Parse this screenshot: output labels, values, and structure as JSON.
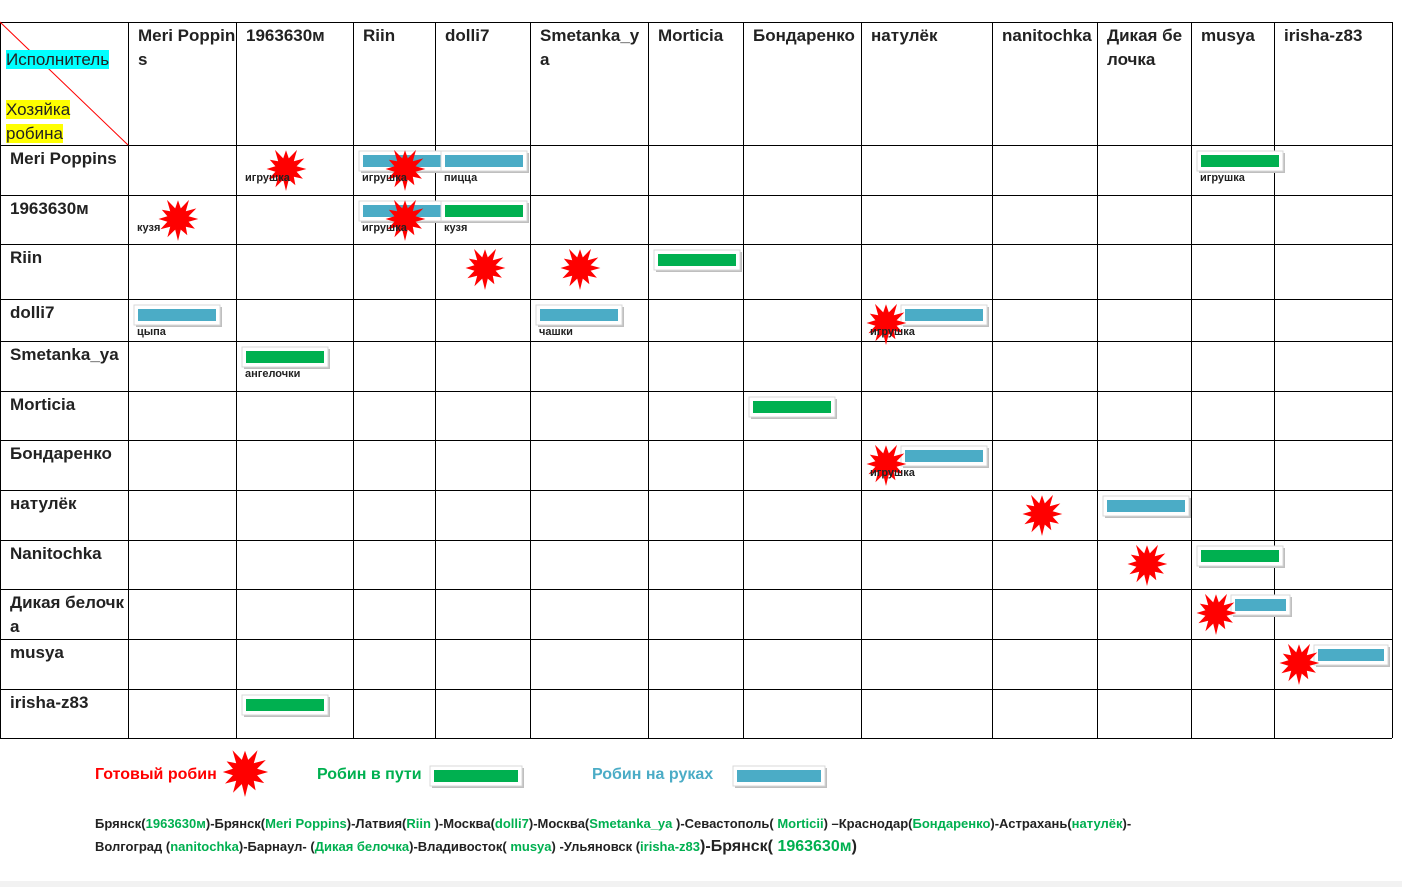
{
  "corner": {
    "columns_label": "Исполнитель",
    "rows_label": "Хозяйка робина"
  },
  "columns": [
    "Meri Poppins",
    "1963630м",
    "Riin",
    "dolli7",
    "Smetanka_ya",
    "Morticia",
    "Бондаренко",
    "натулёк",
    "nanitochka",
    "Дикая белочка",
    "musya",
    "irisha-z83"
  ],
  "rows": [
    {
      "name": "Meri Poppins",
      "cells": [
        null,
        {
          "items": [
            0
          ],
          "label": "игрушка"
        },
        {
          "items": [
            2,
            0
          ],
          "label": "игрушка"
        },
        {
          "items": [
            2
          ],
          "label": "пицца"
        },
        null,
        null,
        null,
        null,
        null,
        null,
        {
          "items": [
            1
          ],
          "label": "игрушка"
        },
        null
      ]
    },
    {
      "name": "1963630м",
      "cells": [
        {
          "items": [
            0
          ],
          "label": "кузя"
        },
        null,
        {
          "items": [
            2,
            0
          ],
          "label": "игрушка"
        },
        {
          "items": [
            1
          ],
          "label": "кузя"
        },
        null,
        null,
        null,
        null,
        null,
        null,
        null,
        null
      ]
    },
    {
      "name": "Riin",
      "cells": [
        null,
        null,
        null,
        {
          "items": [
            0
          ]
        },
        {
          "items": [
            0
          ]
        },
        {
          "items": [
            1
          ]
        },
        null,
        null,
        null,
        null,
        null,
        null
      ]
    },
    {
      "name": "dolli7",
      "cells": [
        {
          "items": [
            2
          ],
          "label": "цыпа"
        },
        null,
        null,
        null,
        {
          "items": [
            2
          ],
          "label": "чашки"
        },
        null,
        null,
        {
          "items": [
            0,
            2
          ],
          "label": "игрушка"
        },
        null,
        null,
        null,
        null
      ]
    },
    {
      "name": "Smetanka_ya",
      "cells": [
        null,
        {
          "items": [
            1
          ],
          "label": "ангелочки"
        },
        null,
        null,
        null,
        null,
        null,
        null,
        null,
        null,
        null,
        null
      ]
    },
    {
      "name": "Morticia",
      "cells": [
        null,
        null,
        null,
        null,
        null,
        null,
        {
          "items": [
            1
          ]
        },
        null,
        null,
        null,
        null,
        null
      ]
    },
    {
      "name": "Бондаренко",
      "cells": [
        null,
        null,
        null,
        null,
        null,
        null,
        null,
        {
          "items": [
            0,
            2
          ],
          "label": "игрушка"
        },
        null,
        null,
        null,
        null
      ]
    },
    {
      "name": "натулёк",
      "cells": [
        null,
        null,
        null,
        null,
        null,
        null,
        null,
        null,
        {
          "items": [
            0
          ]
        },
        {
          "items": [
            2
          ]
        },
        null,
        null
      ]
    },
    {
      "name": "Nanitochka",
      "cells": [
        null,
        null,
        null,
        null,
        null,
        null,
        null,
        null,
        null,
        {
          "items": [
            0
          ]
        },
        {
          "items": [
            1
          ]
        },
        null
      ]
    },
    {
      "name": "Дикая белочка",
      "cells": [
        null,
        null,
        null,
        null,
        null,
        null,
        null,
        null,
        null,
        null,
        {
          "items": [
            0,
            2
          ]
        },
        null
      ]
    },
    {
      "name": "musya",
      "cells": [
        null,
        null,
        null,
        null,
        null,
        null,
        null,
        null,
        null,
        null,
        null,
        {
          "items": [
            0,
            2
          ]
        }
      ]
    },
    {
      "name": "irisha-z83",
      "cells": [
        null,
        {
          "items": [
            1
          ]
        },
        null,
        null,
        null,
        null,
        null,
        null,
        null,
        null,
        null,
        null
      ]
    }
  ],
  "legend": [
    {
      "kind": "star",
      "label": "Готовый робин",
      "color": "#ff0000"
    },
    {
      "kind": "bar",
      "label": "Робин в пути",
      "color": "#00b050"
    },
    {
      "kind": "bar",
      "label": "Робин на руках",
      "color": "#4bacc6"
    }
  ],
  "route": [
    [
      {
        "text": "Брянск("
      },
      {
        "text": "1963630м",
        "color": "#00b050"
      },
      {
        "text": ")-Брянск("
      },
      {
        "text": "Meri Poppins",
        "color": "#00b050"
      },
      {
        "text": ")-Латвия("
      },
      {
        "text": "Riin ",
        "color": "#00b050"
      },
      {
        "text": ")-Москва("
      },
      {
        "text": "dolli7",
        "color": "#00b050"
      },
      {
        "text": ")-Москва("
      },
      {
        "text": "Smetanka_ya ",
        "color": "#00b050"
      },
      {
        "text": ")-Севастополь( "
      },
      {
        "text": "Morticii",
        "color": "#00b050"
      },
      {
        "text": ") –Краснодар("
      },
      {
        "text": "Бондаренко",
        "color": "#00b050"
      },
      {
        "text": ")-Астрахань("
      },
      {
        "text": "натулёк",
        "color": "#00b050"
      },
      {
        "text": ")-"
      }
    ],
    [
      {
        "text": "Волгоград ("
      },
      {
        "text": "nanitochka",
        "color": "#00b050"
      },
      {
        "text": ")-Барнаул- ("
      },
      {
        "text": "Дикая белочка",
        "color": "#00b050"
      },
      {
        "text": ")-Владивосток( "
      },
      {
        "text": "musya",
        "color": "#00b050"
      },
      {
        "text": ") -Ульяновск ("
      },
      {
        "text": "irisha-z83",
        "color": "#00b050"
      },
      {
        "text": ")-Брянск( "
      },
      {
        "text": "1963630м",
        "color": "#00b050"
      },
      {
        "text": ")"
      }
    ]
  ]
}
